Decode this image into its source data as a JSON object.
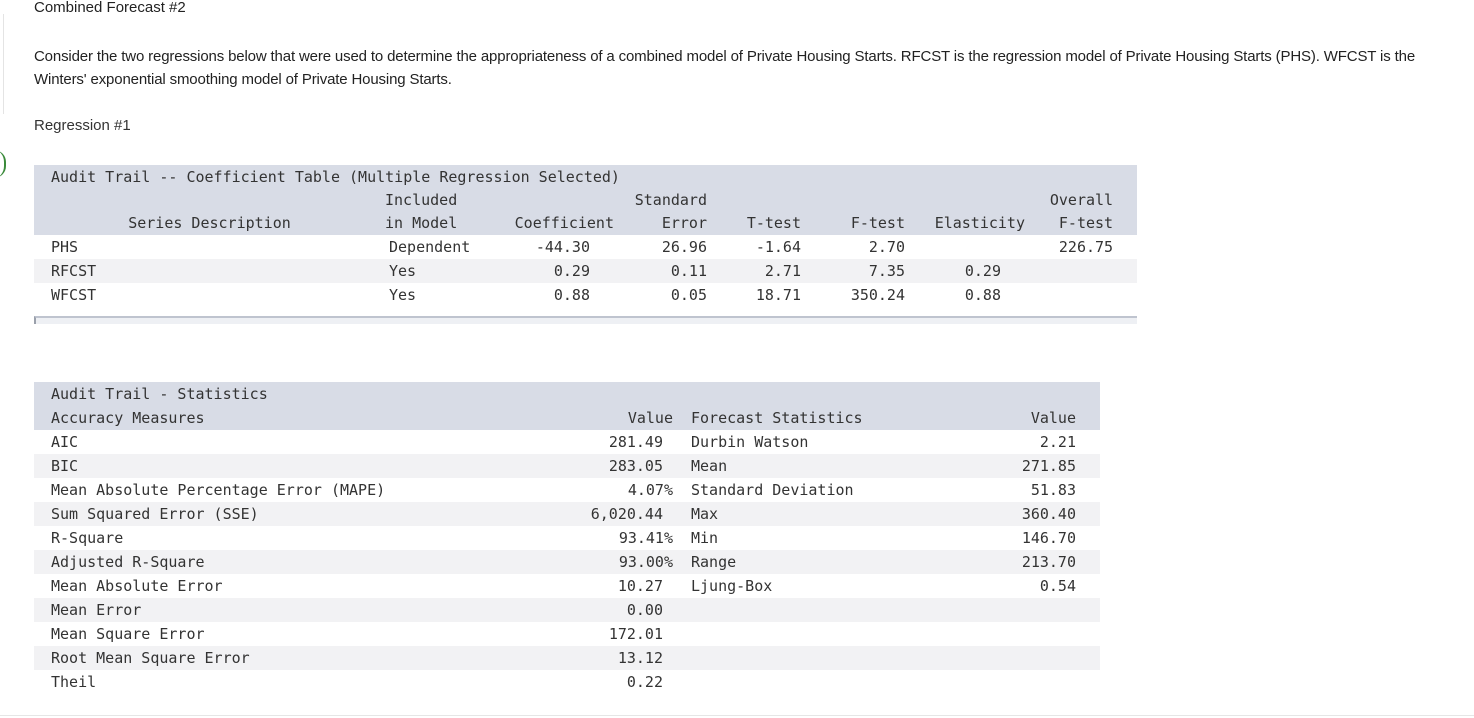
{
  "header": {
    "title": "Combined Forecast #2"
  },
  "intro": "Consider the two regressions below that were used to determine the appropriateness of a combined model of Private Housing Starts. RFCST is the regression model of Private Housing Starts (PHS). WFCST is the Winters' exponential smoothing model of Private Housing Starts.",
  "section_label": "Regression #1",
  "coef_table": {
    "title": "Audit Trail -- Coefficient Table (Multiple Regression Selected)",
    "columns": [
      [
        "Series Description"
      ],
      [
        "Included",
        "in Model"
      ],
      [
        "Coefficient"
      ],
      [
        "Standard",
        "Error"
      ],
      [
        "T-test"
      ],
      [
        "F-test"
      ],
      [
        "Elasticity"
      ],
      [
        "Overall",
        "F-test"
      ]
    ],
    "rows": [
      [
        "PHS",
        "Dependent",
        "-44.30",
        "26.96",
        "-1.64",
        "2.70",
        null,
        "226.75"
      ],
      [
        "RFCST",
        "Yes",
        "0.29",
        "0.11",
        "2.71",
        "7.35",
        "0.29",
        null
      ],
      [
        "WFCST",
        "Yes",
        "0.88",
        "0.05",
        "18.71",
        "350.24",
        "0.88",
        null
      ]
    ]
  },
  "stats_table": {
    "title": "Audit Trail - Statistics",
    "columns": [
      "Accuracy Measures",
      "Value",
      "Forecast Statistics",
      "Value"
    ],
    "rows": [
      [
        "AIC",
        "281.49",
        "Durbin Watson",
        "2.21"
      ],
      [
        "BIC",
        "283.05",
        "Mean",
        "271.85"
      ],
      [
        "Mean Absolute Percentage Error (MAPE)",
        "4.07%",
        "Standard Deviation",
        "51.83"
      ],
      [
        "Sum Squared Error (SSE)",
        "6,020.44",
        "Max",
        "360.40"
      ],
      [
        "R-Square",
        "93.41%",
        "Min",
        "146.70"
      ],
      [
        "Adjusted R-Square",
        "93.00%",
        "Range",
        "213.70"
      ],
      [
        "Mean Absolute Error",
        "10.27",
        "Ljung-Box",
        "0.54"
      ],
      [
        "Mean Error",
        "0.00",
        null,
        null
      ],
      [
        "Mean Square Error",
        "172.01",
        null,
        null
      ],
      [
        "Root Mean Square Error",
        "13.12",
        null,
        null
      ],
      [
        "Theil",
        "0.22",
        null,
        null
      ]
    ]
  }
}
